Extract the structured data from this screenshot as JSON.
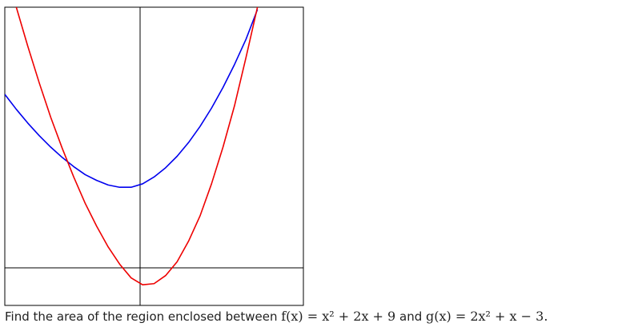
{
  "chart_data": {
    "type": "line",
    "title": "",
    "xlabel": "",
    "ylabel": "",
    "xlim": [
      -6,
      7
    ],
    "ylim": [
      -1,
      12
    ],
    "grid": false,
    "series": [
      {
        "color": "#0000ee",
        "x": [
          -6.0,
          -5.5,
          -5.0,
          -4.5,
          -4.0,
          -3.5,
          -3.0,
          -2.5,
          -2.0,
          -1.5,
          -1.0,
          -0.5,
          0.0,
          0.5,
          1.0,
          1.5,
          2.0,
          2.5,
          3.0,
          3.5,
          4.0,
          4.5,
          5.0
        ],
        "y": [
          8.2,
          7.55,
          6.95,
          6.4,
          5.9,
          5.45,
          5.05,
          4.7,
          4.45,
          4.25,
          4.15,
          4.15,
          4.3,
          4.6,
          5.0,
          5.5,
          6.1,
          6.8,
          7.6,
          8.5,
          9.5,
          10.6,
          11.9
        ]
      },
      {
        "color": "#ee0000",
        "x": [
          -5.5,
          -5.0,
          -4.5,
          -4.0,
          -3.5,
          -3.0,
          -2.5,
          -2.0,
          -1.5,
          -1.0,
          -0.5,
          0.0,
          0.5,
          1.0,
          1.5,
          2.0,
          2.5,
          3.0,
          3.5,
          4.0,
          4.5,
          5.0
        ],
        "y": [
          12.0,
          10.3,
          8.7,
          7.2,
          5.85,
          4.6,
          3.45,
          2.45,
          1.55,
          0.8,
          0.2,
          -0.1,
          -0.05,
          0.3,
          0.9,
          1.8,
          2.9,
          4.3,
          5.9,
          7.7,
          9.8,
          12.0
        ]
      }
    ],
    "axes_color": "#000000"
  },
  "question": {
    "prefix": "Find the area of the region enclosed between",
    "f_expr": "f(x) = x² + 2x + 9",
    "conj": "and",
    "g_expr": "g(x) = 2x² + x − 3."
  }
}
